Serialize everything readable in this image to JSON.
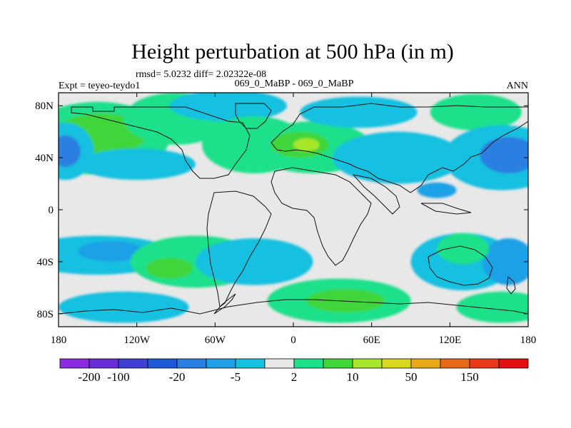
{
  "chart_data": {
    "type": "heatmap",
    "title": "Height perturbation at 500 hPa (in m)",
    "subtitle_left_upper": "rmsd= 5.0232 diff= 2.02322e-08",
    "subtitle_left": "Expt = teyeo-teydo1",
    "subtitle_center": "069_0_MaBP - 069_0_MaBP",
    "subtitle_right": "ANN",
    "x_ticks": [
      {
        "value": -180,
        "label": "180"
      },
      {
        "value": -120,
        "label": "120W"
      },
      {
        "value": -60,
        "label": "60W"
      },
      {
        "value": 0,
        "label": "0"
      },
      {
        "value": 60,
        "label": "60E"
      },
      {
        "value": 120,
        "label": "120E"
      },
      {
        "value": 180,
        "label": "180"
      }
    ],
    "y_ticks": [
      {
        "value": 80,
        "label": "80N"
      },
      {
        "value": 40,
        "label": "40N"
      },
      {
        "value": 0,
        "label": "0"
      },
      {
        "value": -40,
        "label": "40S"
      },
      {
        "value": -80,
        "label": "80S"
      }
    ],
    "xlim": [
      -180,
      180
    ],
    "ylim": [
      -90,
      90
    ],
    "colorbar": {
      "colors": [
        "#8a2be2",
        "#6a2ed8",
        "#3f3fd6",
        "#1e5ad8",
        "#2a7fe0",
        "#1fa0e6",
        "#18c0e0",
        "#e8e8e8",
        "#1ee08a",
        "#3fd63a",
        "#a8e62a",
        "#d8d820",
        "#e8a818",
        "#e86a18",
        "#e83a18",
        "#e01010"
      ],
      "labels": [
        {
          "value": "-200",
          "index": 1
        },
        {
          "value": "-100",
          "index": 2
        },
        {
          "value": "-20",
          "index": 4
        },
        {
          "value": "-5",
          "index": 6
        },
        {
          "value": "2",
          "index": 8
        },
        {
          "value": "10",
          "index": 10
        },
        {
          "value": "50",
          "index": 12
        },
        {
          "value": "150",
          "index": 14
        }
      ]
    },
    "field_blobs": [
      {
        "lon": -150,
        "lat": 55,
        "rlon": 55,
        "rlat": 28,
        "level": 8
      },
      {
        "lon": -148,
        "lat": 58,
        "rlon": 35,
        "rlat": 16,
        "level": 9
      },
      {
        "lon": -90,
        "lat": 70,
        "rlon": 40,
        "rlat": 20,
        "level": 8
      },
      {
        "lon": -175,
        "lat": 45,
        "rlon": 22,
        "rlat": 22,
        "level": 6
      },
      {
        "lon": -175,
        "lat": 45,
        "rlon": 12,
        "rlat": 12,
        "level": 4
      },
      {
        "lon": -120,
        "lat": 35,
        "rlon": 45,
        "rlat": 12,
        "level": 6
      },
      {
        "lon": -50,
        "lat": 80,
        "rlon": 45,
        "rlat": 12,
        "level": 6
      },
      {
        "lon": -30,
        "lat": 50,
        "rlon": 40,
        "rlat": 22,
        "level": 8
      },
      {
        "lon": 15,
        "lat": 48,
        "rlon": 45,
        "rlat": 20,
        "level": 8
      },
      {
        "lon": 5,
        "lat": 50,
        "rlon": 22,
        "rlat": 10,
        "level": 9
      },
      {
        "lon": 10,
        "lat": 50,
        "rlon": 10,
        "rlat": 5,
        "level": 10
      },
      {
        "lon": 80,
        "lat": 40,
        "rlon": 50,
        "rlat": 20,
        "level": 6
      },
      {
        "lon": 50,
        "lat": 75,
        "rlon": 45,
        "rlat": 12,
        "level": 6
      },
      {
        "lon": 140,
        "lat": 75,
        "rlon": 35,
        "rlat": 14,
        "level": 8
      },
      {
        "lon": 160,
        "lat": 40,
        "rlon": 45,
        "rlat": 25,
        "level": 6
      },
      {
        "lon": 165,
        "lat": 42,
        "rlon": 22,
        "rlat": 14,
        "level": 4
      },
      {
        "lon": 110,
        "lat": 15,
        "rlon": 15,
        "rlat": 6,
        "level": 5
      },
      {
        "lon": -150,
        "lat": -35,
        "rlon": 60,
        "rlat": 15,
        "level": 6
      },
      {
        "lon": -140,
        "lat": -32,
        "rlon": 25,
        "rlat": 8,
        "level": 5
      },
      {
        "lon": -75,
        "lat": -40,
        "rlon": 50,
        "rlat": 20,
        "level": 8
      },
      {
        "lon": -95,
        "lat": -45,
        "rlon": 18,
        "rlat": 8,
        "level": 9
      },
      {
        "lon": -130,
        "lat": -75,
        "rlon": 50,
        "rlat": 12,
        "level": 6
      },
      {
        "lon": 35,
        "lat": -70,
        "rlon": 55,
        "rlat": 17,
        "level": 8
      },
      {
        "lon": 40,
        "lat": -70,
        "rlon": 30,
        "rlat": 9,
        "level": 9
      },
      {
        "lon": -30,
        "lat": -40,
        "rlon": 45,
        "rlat": 18,
        "level": 6
      },
      {
        "lon": 130,
        "lat": -40,
        "rlon": 40,
        "rlat": 22,
        "level": 6
      },
      {
        "lon": 165,
        "lat": -40,
        "rlon": 20,
        "rlat": 18,
        "level": 5
      },
      {
        "lon": 130,
        "lat": -30,
        "rlon": 20,
        "rlat": 12,
        "level": 8
      },
      {
        "lon": 160,
        "lat": -75,
        "rlon": 35,
        "rlat": 12,
        "level": 8
      }
    ]
  }
}
